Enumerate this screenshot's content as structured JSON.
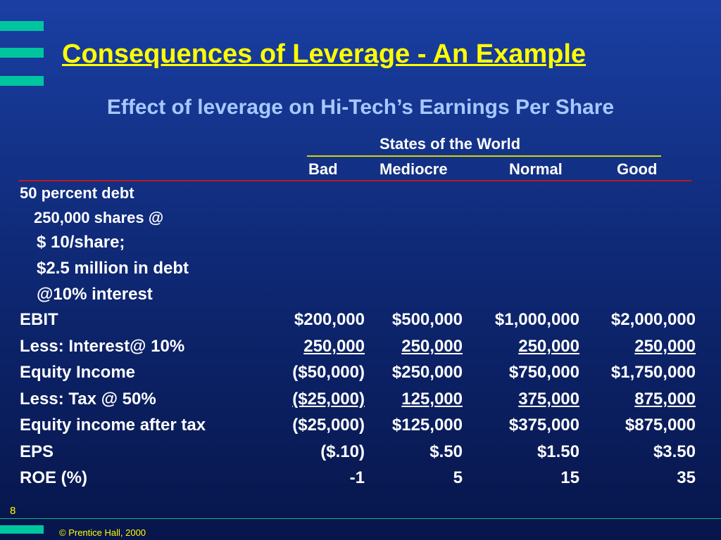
{
  "slide": {
    "title": "Consequences of Leverage - An Example",
    "subtitle": "Effect of leverage on Hi-Tech’s Earnings Per Share",
    "page_number": "8",
    "copyright": "© Prentice Hall, 2000"
  },
  "table": {
    "group_header": "States of the World",
    "columns": [
      "Bad",
      "Mediocre",
      "Normal",
      "Good"
    ],
    "description": [
      "50 percent debt",
      "250,000 shares @",
      "$ 10/share;",
      "$2.5 million in debt",
      "@10% interest"
    ],
    "rows": [
      {
        "label": "EBIT",
        "values": [
          "$200,000",
          "$500,000",
          "$1,000,000",
          "$2,000,000"
        ],
        "underline": [
          false,
          false,
          false,
          false
        ]
      },
      {
        "label": "Less: Interest@ 10%",
        "values": [
          "250,000",
          "250,000",
          "250,000",
          "250,000"
        ],
        "underline": [
          true,
          true,
          true,
          true
        ]
      },
      {
        "label": "Equity Income",
        "values": [
          "($50,000)",
          "$250,000",
          "$750,000",
          "$1,750,000"
        ],
        "underline": [
          false,
          false,
          false,
          false
        ]
      },
      {
        "label": "Less: Tax @ 50%",
        "values": [
          "($25,000)",
          "125,000",
          "375,000",
          "875,000"
        ],
        "underline": [
          true,
          true,
          true,
          true
        ]
      },
      {
        "label": "Equity income after tax",
        "values": [
          "($25,000)",
          "$125,000",
          "$375,000",
          "$875,000"
        ],
        "underline": [
          false,
          false,
          false,
          false
        ]
      },
      {
        "label": "EPS",
        "values": [
          "($.10)",
          "$.50",
          "$1.50",
          "$3.50"
        ],
        "underline": [
          false,
          false,
          false,
          false
        ]
      },
      {
        "label": "ROE (%)",
        "values": [
          "-1",
          "5",
          "15",
          "35"
        ],
        "underline": [
          false,
          false,
          false,
          false
        ]
      }
    ]
  },
  "colors": {
    "title": "#ffff00",
    "subtitle": "#a8c8ff",
    "accent_bars": "#00c6a0",
    "header_rule": "#d8d400",
    "table_rule": "#c01818"
  }
}
